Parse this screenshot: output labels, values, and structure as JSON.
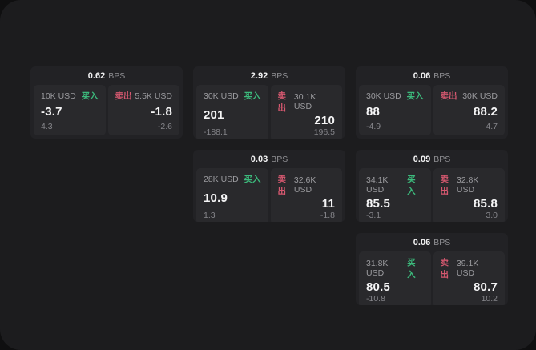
{
  "labels": {
    "bps_unit": "BPS",
    "buy": "买入",
    "sell": "卖出"
  },
  "colors": {
    "buy_green": "#3cba7c",
    "sell_red": "#d5586f",
    "window_bg": "#1c1c1e",
    "card_bg": "#222225",
    "panel_bg": "#29292c"
  },
  "cards": [
    {
      "col": 1,
      "row": 1,
      "bps": "0.62",
      "bps_unit": "BPS",
      "buy": {
        "amount": "10K USD",
        "side": "买入",
        "value": "-3.7",
        "delta": "4.3"
      },
      "sell": {
        "amount": "5.5K USD",
        "side": "卖出",
        "value": "-1.8",
        "delta": "-2.6"
      }
    },
    {
      "col": 2,
      "row": 1,
      "bps": "2.92",
      "bps_unit": "BPS",
      "buy": {
        "amount": "30K USD",
        "side": "买入",
        "value": "201",
        "delta": "-188.1"
      },
      "sell": {
        "amount": "30.1K USD",
        "side": "卖出",
        "value": "210",
        "delta": "196.5"
      }
    },
    {
      "col": 3,
      "row": 1,
      "bps": "0.06",
      "bps_unit": "BPS",
      "buy": {
        "amount": "30K USD",
        "side": "买入",
        "value": "88",
        "delta": "-4.9"
      },
      "sell": {
        "amount": "30K USD",
        "side": "卖出",
        "value": "88.2",
        "delta": "4.7"
      }
    },
    {
      "col": 2,
      "row": 2,
      "bps": "0.03",
      "bps_unit": "BPS",
      "buy": {
        "amount": "28K USD",
        "side": "买入",
        "value": "10.9",
        "delta": "1.3"
      },
      "sell": {
        "amount": "32.6K USD",
        "side": "卖出",
        "value": "11",
        "delta": "-1.8"
      }
    },
    {
      "col": 3,
      "row": 2,
      "bps": "0.09",
      "bps_unit": "BPS",
      "buy": {
        "amount": "34.1K USD",
        "side": "买入",
        "value": "85.5",
        "delta": "-3.1"
      },
      "sell": {
        "amount": "32.8K USD",
        "side": "卖出",
        "value": "85.8",
        "delta": "3.0"
      }
    },
    {
      "col": 3,
      "row": 3,
      "bps": "0.06",
      "bps_unit": "BPS",
      "buy": {
        "amount": "31.8K USD",
        "side": "买入",
        "value": "80.5",
        "delta": "-10.8"
      },
      "sell": {
        "amount": "39.1K USD",
        "side": "卖出",
        "value": "80.7",
        "delta": "10.2"
      }
    }
  ]
}
